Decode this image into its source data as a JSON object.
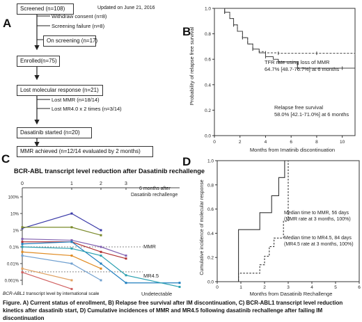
{
  "panelA": {
    "letter": "A",
    "updated": "Updated on June 21, 2016",
    "screened": "Screened (n=108)",
    "withdraw": "Withdraw consent (n=8)",
    "screening_failure": "Screening failure (n=8)",
    "on_screening": "On screening (n=17)",
    "enrolled": "Enrolled(n=75)",
    "lost_molecular": "Lost molecular response (n=21)",
    "lost_mmr": "Lost MMR (n=18/14)",
    "lost_mr4": "Lost MR4.0 x 2 times (n=3/14)",
    "dasatinib": "Dasatinib started (n=20)",
    "mmr_achieved": "MMR achieved (n=12/14 evaluated by 2 months)"
  },
  "panelB": {
    "letter": "B",
    "tfr_line1": "TFR rate using loss of MMR",
    "tfr_line2": "64.7% [48.7-76.7%] at 6 months",
    "rfs_line1": "Relapse free survival",
    "rfs_line2": "58.0% [42.1-71.0%] at 6 months",
    "xlabel": "Months from Imatinib discontinuation",
    "ylabel": "Probability of relapse free survival",
    "yticks": [
      "0.0",
      "0.2",
      "0.4",
      "0.6",
      "0.8",
      "1.0"
    ],
    "xticks": [
      "0",
      "2",
      "4",
      "6",
      "8",
      "10"
    ]
  },
  "panelC": {
    "letter": "C",
    "title": "BCR-ABL transcript level reduction after Dasatinib rechallenge",
    "xticks": [
      "0",
      "1",
      "2",
      "3"
    ],
    "x_end_line1": "6 months after",
    "x_end_line2": "Dasatinib rechallenge",
    "yticks": [
      "100%",
      "10%",
      "1%",
      "0.1%",
      "0.01%",
      "0.001%"
    ],
    "mmr": "MMR",
    "mr45": "MR4.5",
    "undetectable": "Undetectable",
    "footnote_italic": "BCR-ABL1",
    "footnote_rest": " transcript level by international scale"
  },
  "panelD": {
    "letter": "D",
    "ann1_line1": "Median time to MMR,  56 days",
    "ann1_line2": "(MMR rate at 3 months, 100%)",
    "ann2_line1": "Median time to MR4.5, 84 days",
    "ann2_line2": "(MR4.5 rate at 3 months, 100%)",
    "xlabel": "Months from Dasatinib Rechallenge",
    "ylabel": "Cumulative incidence of molecular response",
    "yticks": [
      "0.0",
      "0.2",
      "0.4",
      "0.6",
      "0.8",
      "1.0"
    ],
    "xticks": [
      "0",
      "1",
      "2",
      "3",
      "4",
      "5",
      "6"
    ]
  },
  "caption": "Figure. A) Current status of enrollment, B) Relapse free survival after IM discontinuation, C) BCR-ABL1 transcript level reduction kinetics after dasatinib start, D) Cumulative incidences of MMR and MR4.5 following dasatinib rechallenge after failing IM discontinuation",
  "chart_data": [
    {
      "type": "line",
      "panel": "B",
      "ylim": [
        0,
        1
      ],
      "xlim": [
        0,
        11
      ],
      "series": [
        {
          "style": "solid",
          "x": [
            0,
            0.8,
            1.2,
            1.5,
            1.8,
            2.2,
            2.6,
            3.0,
            3.5,
            4.0,
            4.6,
            5.0,
            6.0,
            6.5,
            8,
            10,
            11
          ],
          "y": [
            1.0,
            0.97,
            0.92,
            0.87,
            0.82,
            0.77,
            0.72,
            0.68,
            0.65,
            0.62,
            0.6,
            0.58,
            0.58,
            0.53,
            0.53,
            0.53,
            0.53
          ]
        },
        {
          "style": "dashed",
          "x": [
            0,
            0.8,
            1.2,
            1.5,
            1.8,
            2.2,
            2.6,
            3.0,
            3.5,
            4.0,
            4.6,
            5.0,
            6.0,
            8,
            10,
            11
          ],
          "y": [
            1.0,
            0.97,
            0.92,
            0.87,
            0.82,
            0.77,
            0.72,
            0.68,
            0.66,
            0.65,
            0.65,
            0.647,
            0.647,
            0.647,
            0.647,
            0.647
          ]
        }
      ]
    },
    {
      "type": "line",
      "panel": "C",
      "x": [
        0,
        1,
        2,
        3,
        6
      ],
      "series": [
        {
          "color": "#3a3aa8",
          "x": [
            0,
            1,
            2
          ],
          "y": [
            1.3,
            10,
            1
          ]
        },
        {
          "color": "#7a8a2a",
          "x": [
            0,
            1,
            2
          ],
          "y": [
            1.5,
            1.5,
            0.5
          ]
        },
        {
          "color": "#b03030",
          "x": [
            0,
            1,
            2,
            3
          ],
          "y": [
            0.2,
            0.2,
            0.05,
            0.02
          ]
        },
        {
          "color": "#8060b0",
          "x": [
            0,
            1,
            2,
            3
          ],
          "y": [
            0.3,
            0.25,
            0.1,
            0.03
          ]
        },
        {
          "color": "#1f7fbf",
          "x": [
            0,
            1,
            2,
            3,
            6
          ],
          "y": [
            0.15,
            0.2,
            0.01,
            0.0007,
            0.0007
          ]
        },
        {
          "color": "#2aa0b0",
          "x": [
            0,
            1,
            2,
            3,
            6
          ],
          "y": [
            0.1,
            0.08,
            0.03,
            0.002,
            0.0004
          ]
        },
        {
          "color": "#e08a20",
          "x": [
            0,
            1,
            2
          ],
          "y": [
            0.05,
            0.03,
            0.005
          ]
        },
        {
          "color": "#e0a060",
          "x": [
            0,
            1
          ],
          "y": [
            0.005,
            0.001
          ]
        },
        {
          "color": "#70a0d0",
          "x": [
            0,
            1,
            2
          ],
          "y": [
            0.03,
            0.01,
            0.001
          ]
        },
        {
          "color": "#d06060",
          "x": [
            0,
            1
          ],
          "y": [
            0.003,
            0.0003
          ]
        }
      ]
    },
    {
      "type": "line",
      "panel": "D",
      "ylim": [
        0,
        1
      ],
      "xlim": [
        0,
        6
      ],
      "series": [
        {
          "style": "solid",
          "x": [
            0,
            0.9,
            0.9,
            1.8,
            1.8,
            2.3,
            2.3,
            2.6,
            2.6,
            2.85,
            2.85,
            6
          ],
          "y": [
            0,
            0,
            0.43,
            0.43,
            0.57,
            0.57,
            0.71,
            0.71,
            0.86,
            0.86,
            1.0,
            1.0
          ]
        },
        {
          "style": "dashed",
          "x": [
            0,
            0.9,
            0.9,
            1.8,
            1.8,
            2.0,
            2.0,
            2.2,
            2.2,
            2.4,
            2.4,
            2.8,
            2.8,
            3.0,
            3.0,
            6
          ],
          "y": [
            0,
            0,
            0.07,
            0.07,
            0.14,
            0.14,
            0.21,
            0.21,
            0.29,
            0.29,
            0.36,
            0.36,
            0.5,
            0.5,
            1.0,
            1.0
          ]
        }
      ]
    }
  ]
}
